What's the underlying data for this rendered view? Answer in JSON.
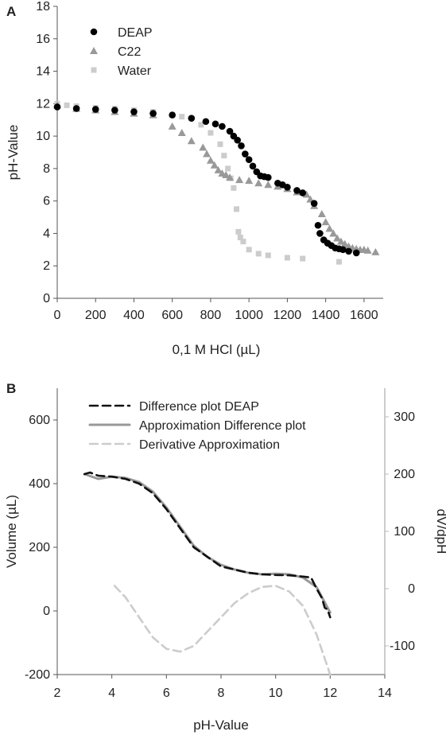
{
  "chart_data": [
    {
      "panel": "A",
      "type": "scatter",
      "xlabel": "0,1 M HCl (µL)",
      "ylabel": "pH-Value",
      "xlim": [
        0,
        1700
      ],
      "ylim": [
        0,
        18
      ],
      "xticks": [
        0,
        200,
        400,
        600,
        800,
        1000,
        1200,
        1400,
        1600
      ],
      "yticks": [
        0,
        2,
        4,
        6,
        8,
        10,
        12,
        14,
        16,
        18
      ],
      "legend_position": "top-left",
      "grid": false,
      "series": [
        {
          "name": "DEAP",
          "marker": "circle",
          "color": "#000000",
          "points": [
            [
              0,
              11.8
            ],
            [
              100,
              11.7
            ],
            [
              200,
              11.65
            ],
            [
              300,
              11.6
            ],
            [
              400,
              11.5
            ],
            [
              500,
              11.4
            ],
            [
              600,
              11.3
            ],
            [
              700,
              11.1
            ],
            [
              775,
              10.9
            ],
            [
              825,
              10.75
            ],
            [
              860,
              10.6
            ],
            [
              900,
              10.3
            ],
            [
              920,
              10.0
            ],
            [
              940,
              9.75
            ],
            [
              960,
              9.4
            ],
            [
              980,
              8.9
            ],
            [
              1000,
              8.55
            ],
            [
              1020,
              8.15
            ],
            [
              1040,
              7.8
            ],
            [
              1060,
              7.55
            ],
            [
              1080,
              7.5
            ],
            [
              1100,
              7.45
            ],
            [
              1150,
              7.1
            ],
            [
              1175,
              7.0
            ],
            [
              1200,
              6.85
            ],
            [
              1250,
              6.65
            ],
            [
              1280,
              6.5
            ],
            [
              1340,
              5.85
            ],
            [
              1360,
              4.5
            ],
            [
              1370,
              4.0
            ],
            [
              1390,
              3.6
            ],
            [
              1410,
              3.4
            ],
            [
              1430,
              3.25
            ],
            [
              1450,
              3.1
            ],
            [
              1470,
              3.05
            ],
            [
              1490,
              3.0
            ],
            [
              1520,
              2.9
            ],
            [
              1560,
              2.8
            ]
          ]
        },
        {
          "name": "C22",
          "marker": "triangle",
          "color": "#999999",
          "points": [
            [
              0,
              11.9
            ],
            [
              100,
              11.7
            ],
            [
              200,
              11.6
            ],
            [
              300,
              11.5
            ],
            [
              400,
              11.4
            ],
            [
              500,
              11.3
            ],
            [
              600,
              10.6
            ],
            [
              650,
              10.2
            ],
            [
              700,
              9.7
            ],
            [
              760,
              9.3
            ],
            [
              780,
              8.9
            ],
            [
              800,
              8.5
            ],
            [
              820,
              8.2
            ],
            [
              840,
              7.9
            ],
            [
              860,
              7.7
            ],
            [
              880,
              7.6
            ],
            [
              900,
              7.45
            ],
            [
              950,
              7.3
            ],
            [
              1000,
              7.25
            ],
            [
              1050,
              7.1
            ],
            [
              1100,
              7.0
            ],
            [
              1150,
              6.9
            ],
            [
              1200,
              6.75
            ],
            [
              1250,
              6.55
            ],
            [
              1300,
              6.4
            ],
            [
              1320,
              6.1
            ],
            [
              1340,
              5.7
            ],
            [
              1380,
              5.2
            ],
            [
              1400,
              4.7
            ],
            [
              1420,
              4.3
            ],
            [
              1440,
              4.0
            ],
            [
              1460,
              3.7
            ],
            [
              1480,
              3.5
            ],
            [
              1500,
              3.35
            ],
            [
              1520,
              3.2
            ],
            [
              1540,
              3.1
            ],
            [
              1560,
              3.05
            ],
            [
              1580,
              3.0
            ],
            [
              1600,
              3.0
            ],
            [
              1620,
              2.95
            ],
            [
              1660,
              2.85
            ]
          ]
        },
        {
          "name": "Water",
          "marker": "square",
          "color": "#cccccc",
          "points": [
            [
              0,
              12.0
            ],
            [
              50,
              11.9
            ],
            [
              100,
              11.85
            ],
            [
              200,
              11.75
            ],
            [
              300,
              11.7
            ],
            [
              400,
              11.6
            ],
            [
              500,
              11.5
            ],
            [
              600,
              11.3
            ],
            [
              650,
              11.2
            ],
            [
              750,
              10.7
            ],
            [
              800,
              10.2
            ],
            [
              850,
              9.5
            ],
            [
              870,
              8.8
            ],
            [
              890,
              8.0
            ],
            [
              905,
              7.4
            ],
            [
              920,
              6.8
            ],
            [
              935,
              5.5
            ],
            [
              945,
              4.1
            ],
            [
              955,
              3.75
            ],
            [
              970,
              3.5
            ],
            [
              1000,
              3.0
            ],
            [
              1050,
              2.75
            ],
            [
              1100,
              2.65
            ],
            [
              1200,
              2.5
            ],
            [
              1280,
              2.45
            ],
            [
              1470,
              2.25
            ]
          ]
        }
      ]
    },
    {
      "panel": "B",
      "type": "line",
      "xlabel": "pH-Value",
      "ylabel": "Volume (µL)",
      "y2label": "dV/dpH",
      "xlim": [
        2,
        14
      ],
      "ylim": [
        -200,
        700
      ],
      "y2lim": [
        -150,
        350
      ],
      "xticks": [
        2,
        4,
        6,
        8,
        10,
        12,
        14
      ],
      "yticks": [
        -200,
        0,
        200,
        400,
        600
      ],
      "y2ticks": [
        -100,
        0,
        100,
        200,
        300
      ],
      "legend_position": "top-center",
      "grid": false,
      "series": [
        {
          "name": "Difference plot DEAP",
          "axis": "left",
          "style": "dashed",
          "color": "#111111",
          "points": [
            [
              3.0,
              430
            ],
            [
              3.2,
              435
            ],
            [
              3.5,
              425
            ],
            [
              4.0,
              422
            ],
            [
              4.5,
              415
            ],
            [
              5.0,
              400
            ],
            [
              5.5,
              370
            ],
            [
              6.0,
              320
            ],
            [
              6.5,
              260
            ],
            [
              7.0,
              200
            ],
            [
              7.5,
              170
            ],
            [
              8.0,
              140
            ],
            [
              8.5,
              130
            ],
            [
              9.0,
              120
            ],
            [
              9.5,
              115
            ],
            [
              10.0,
              113
            ],
            [
              10.5,
              112
            ],
            [
              11.0,
              108
            ],
            [
              11.3,
              105
            ],
            [
              11.5,
              70
            ],
            [
              11.7,
              40
            ],
            [
              11.8,
              10
            ],
            [
              11.9,
              5
            ],
            [
              12.0,
              -20
            ]
          ]
        },
        {
          "name": "Approximation Difference plot",
          "axis": "left",
          "style": "solid",
          "color": "#999999",
          "points": [
            [
              3.0,
              430
            ],
            [
              3.5,
              415
            ],
            [
              4.0,
              422
            ],
            [
              4.5,
              418
            ],
            [
              5.0,
              405
            ],
            [
              5.5,
              375
            ],
            [
              6.0,
              325
            ],
            [
              6.5,
              265
            ],
            [
              7.0,
              205
            ],
            [
              7.5,
              170
            ],
            [
              8.0,
              145
            ],
            [
              8.5,
              130
            ],
            [
              9.0,
              120
            ],
            [
              9.5,
              115
            ],
            [
              10.0,
              117
            ],
            [
              10.5,
              115
            ],
            [
              11.0,
              105
            ],
            [
              11.5,
              75
            ],
            [
              12.0,
              -5
            ]
          ]
        },
        {
          "name": "Derivative Approximation",
          "axis": "right",
          "style": "dashed",
          "color": "#cccccc",
          "points": [
            [
              4.1,
              5
            ],
            [
              4.5,
              -15
            ],
            [
              5.0,
              -50
            ],
            [
              5.5,
              -85
            ],
            [
              6.0,
              -105
            ],
            [
              6.5,
              -110
            ],
            [
              7.0,
              -100
            ],
            [
              7.5,
              -75
            ],
            [
              8.0,
              -50
            ],
            [
              8.5,
              -25
            ],
            [
              9.0,
              -8
            ],
            [
              9.5,
              3
            ],
            [
              10.0,
              5
            ],
            [
              10.5,
              -5
            ],
            [
              11.0,
              -30
            ],
            [
              11.5,
              -80
            ],
            [
              12.0,
              -150
            ]
          ]
        }
      ]
    }
  ]
}
